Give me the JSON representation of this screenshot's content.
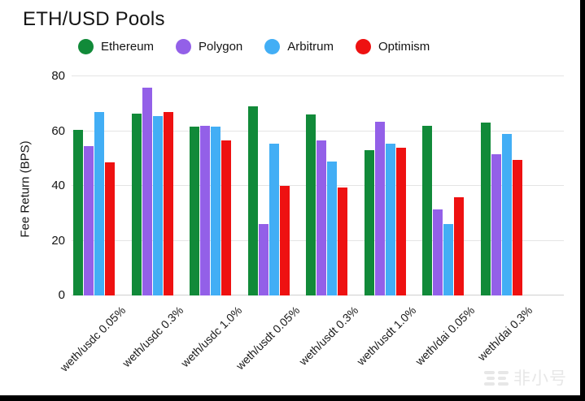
{
  "title": "ETH/USD Pools",
  "watermark": {
    "text": "非小号"
  },
  "chart_data": {
    "type": "bar",
    "title": "ETH/USD Pools",
    "ylabel": "Fee Return (BPS)",
    "xlabel": "",
    "ylim": [
      0,
      80
    ],
    "yticks": [
      0,
      20,
      40,
      60,
      80
    ],
    "grid": true,
    "legend_position": "top",
    "categories": [
      "weth/usdc 0.05%",
      "weth/usdc 0.3%",
      "weth/usdc 1.0%",
      "weth/usdt 0.05%",
      "weth/usdt 0.3%",
      "weth/usdt 1.0%",
      "weth/dai 0.05%",
      "weth/dai 0.3%"
    ],
    "series": [
      {
        "name": "Ethereum",
        "color": "#118A39",
        "values": [
          60.5,
          66.5,
          61.5,
          69,
          66,
          53,
          62,
          63
        ]
      },
      {
        "name": "Polygon",
        "color": "#9360E8",
        "values": [
          54.5,
          76,
          62,
          26,
          56.5,
          63.5,
          31.5,
          51.5
        ]
      },
      {
        "name": "Arbitrum",
        "color": "#42AEF5",
        "values": [
          67,
          65.5,
          61.5,
          55.5,
          49,
          55.5,
          26,
          59
        ]
      },
      {
        "name": "Optimism",
        "color": "#EE1111",
        "values": [
          48.5,
          67,
          56.5,
          40,
          39.5,
          54,
          36,
          49.5
        ]
      }
    ]
  }
}
